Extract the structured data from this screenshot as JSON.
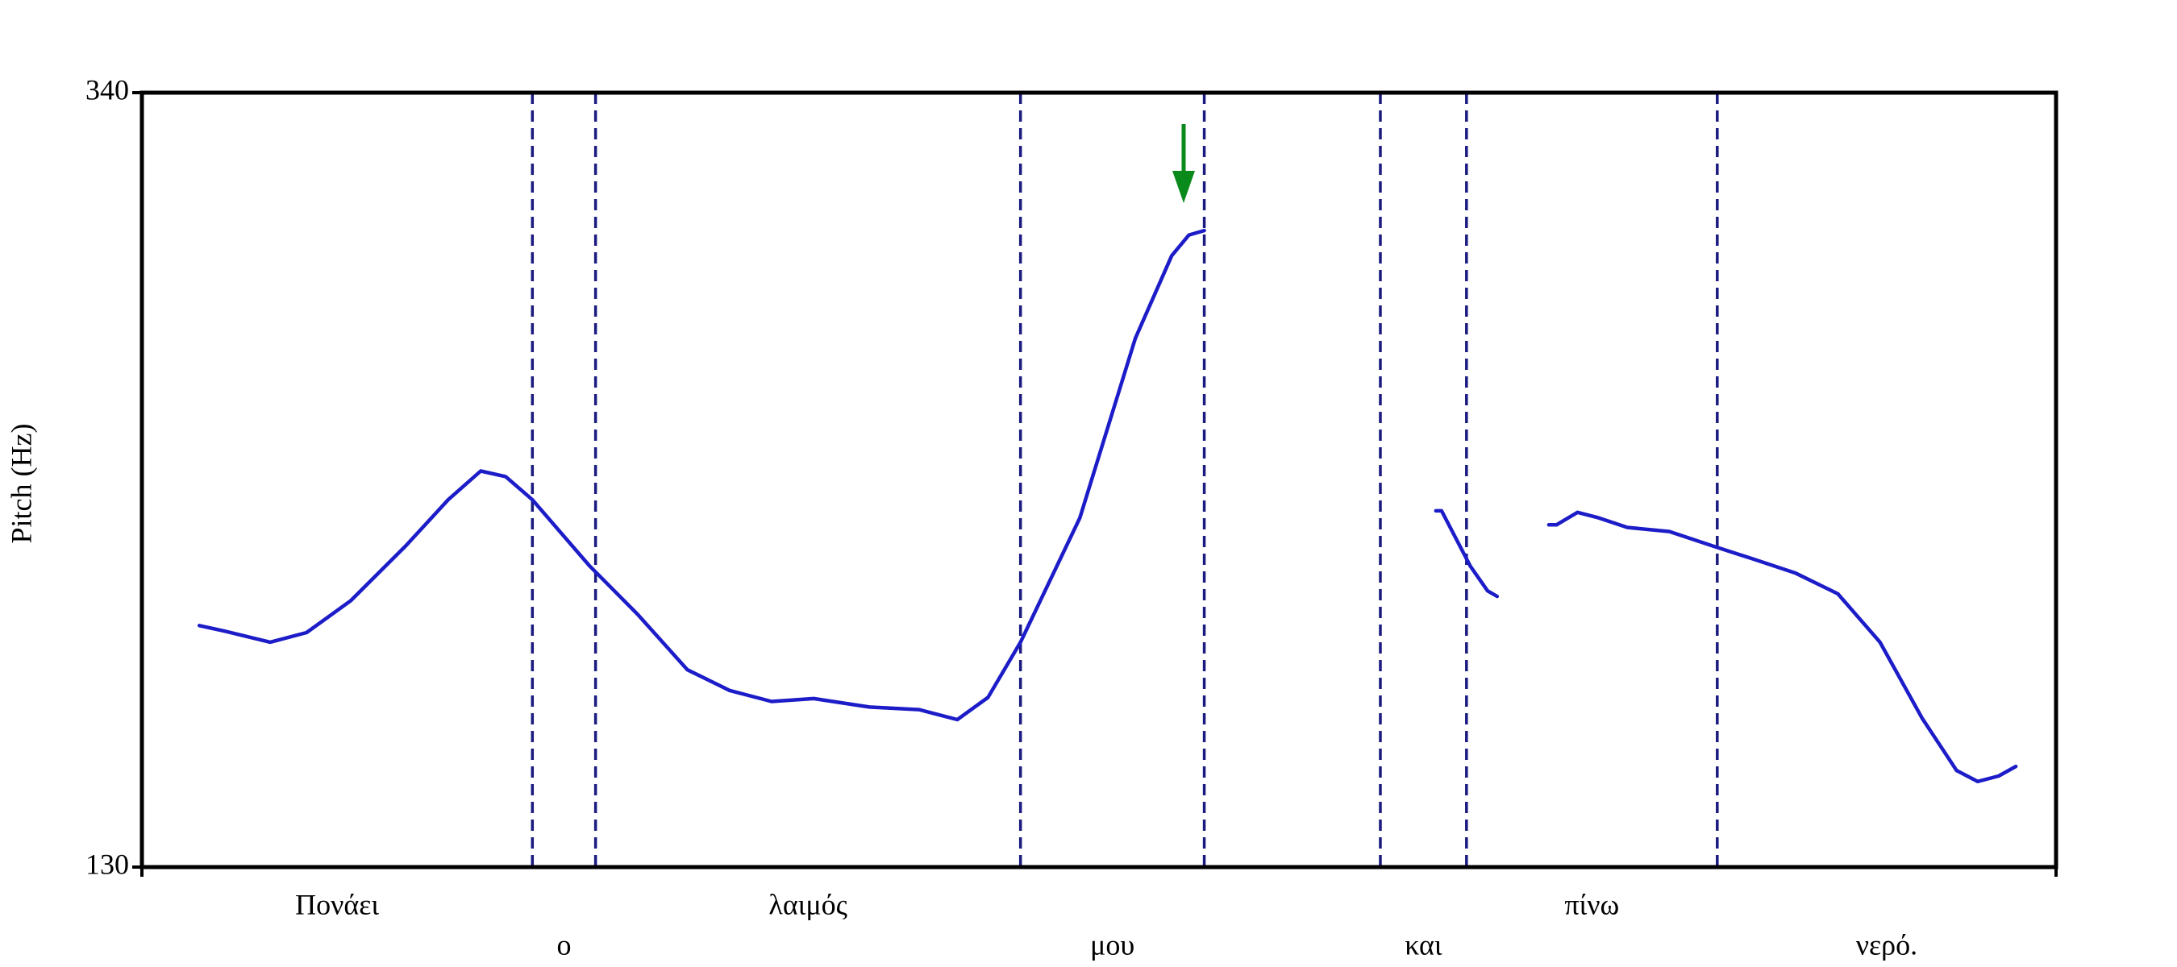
{
  "chart_data": {
    "type": "line",
    "ylabel": "Pitch (Hz)",
    "ylim": [
      130,
      340
    ],
    "yticks": [
      130,
      340
    ],
    "xlim": [
      0,
      100
    ],
    "series": [
      {
        "color": "#1c1cc8",
        "x": [
          3.0,
          4.3,
          6.7,
          8.6,
          10.9,
          13.8,
          16.0,
          17.7,
          19.0,
          20.4,
          23.4,
          25.9,
          28.5,
          30.7,
          32.9,
          35.1,
          38.0,
          40.6,
          42.6,
          44.2,
          45.9,
          49.0,
          51.9,
          53.8,
          54.7,
          55.5,
          61.5,
          67.6,
          67.9,
          69.4,
          70.3,
          70.8,
          72.2,
          73.5,
          73.9,
          75.0,
          76.1,
          77.6,
          79.8,
          82.0,
          84.2,
          86.4,
          88.6,
          90.8,
          93.0,
          94.8,
          95.9,
          97.0,
          97.9
        ],
        "values": [
          195.5,
          194.0,
          191.0,
          193.6,
          202.2,
          217.2,
          229.6,
          237.4,
          235.9,
          229.6,
          211.6,
          198.5,
          183.5,
          177.9,
          174.9,
          175.7,
          173.4,
          172.7,
          170.0,
          176.0,
          191.0,
          224.7,
          273.4,
          295.8,
          301.4,
          302.6,
          null,
          226.6,
          226.6,
          211.6,
          204.9,
          203.4,
          null,
          222.8,
          222.8,
          226.2,
          224.7,
          222.1,
          221.0,
          217.2,
          213.5,
          209.7,
          204.1,
          191.0,
          170.4,
          156.2,
          153.2,
          154.7,
          157.3
        ]
      }
    ],
    "intervals": [
      {
        "label": "Πονάει",
        "start": 0,
        "end": 20.4
      },
      {
        "label": "ο",
        "start": 20.4,
        "end": 23.7
      },
      {
        "label": "λαιμός",
        "start": 23.7,
        "end": 45.9
      },
      {
        "label": "μου",
        "start": 45.9,
        "end": 55.5
      },
      {
        "label": "και",
        "start": 64.7,
        "end": 69.2
      },
      {
        "label": "πίνω",
        "start": 69.2,
        "end": 82.3
      },
      {
        "label": "νερό.",
        "start": 82.3,
        "end": 100
      }
    ],
    "boundary_color": "#1a1a80",
    "annotation_color": "#0a8a1a"
  }
}
